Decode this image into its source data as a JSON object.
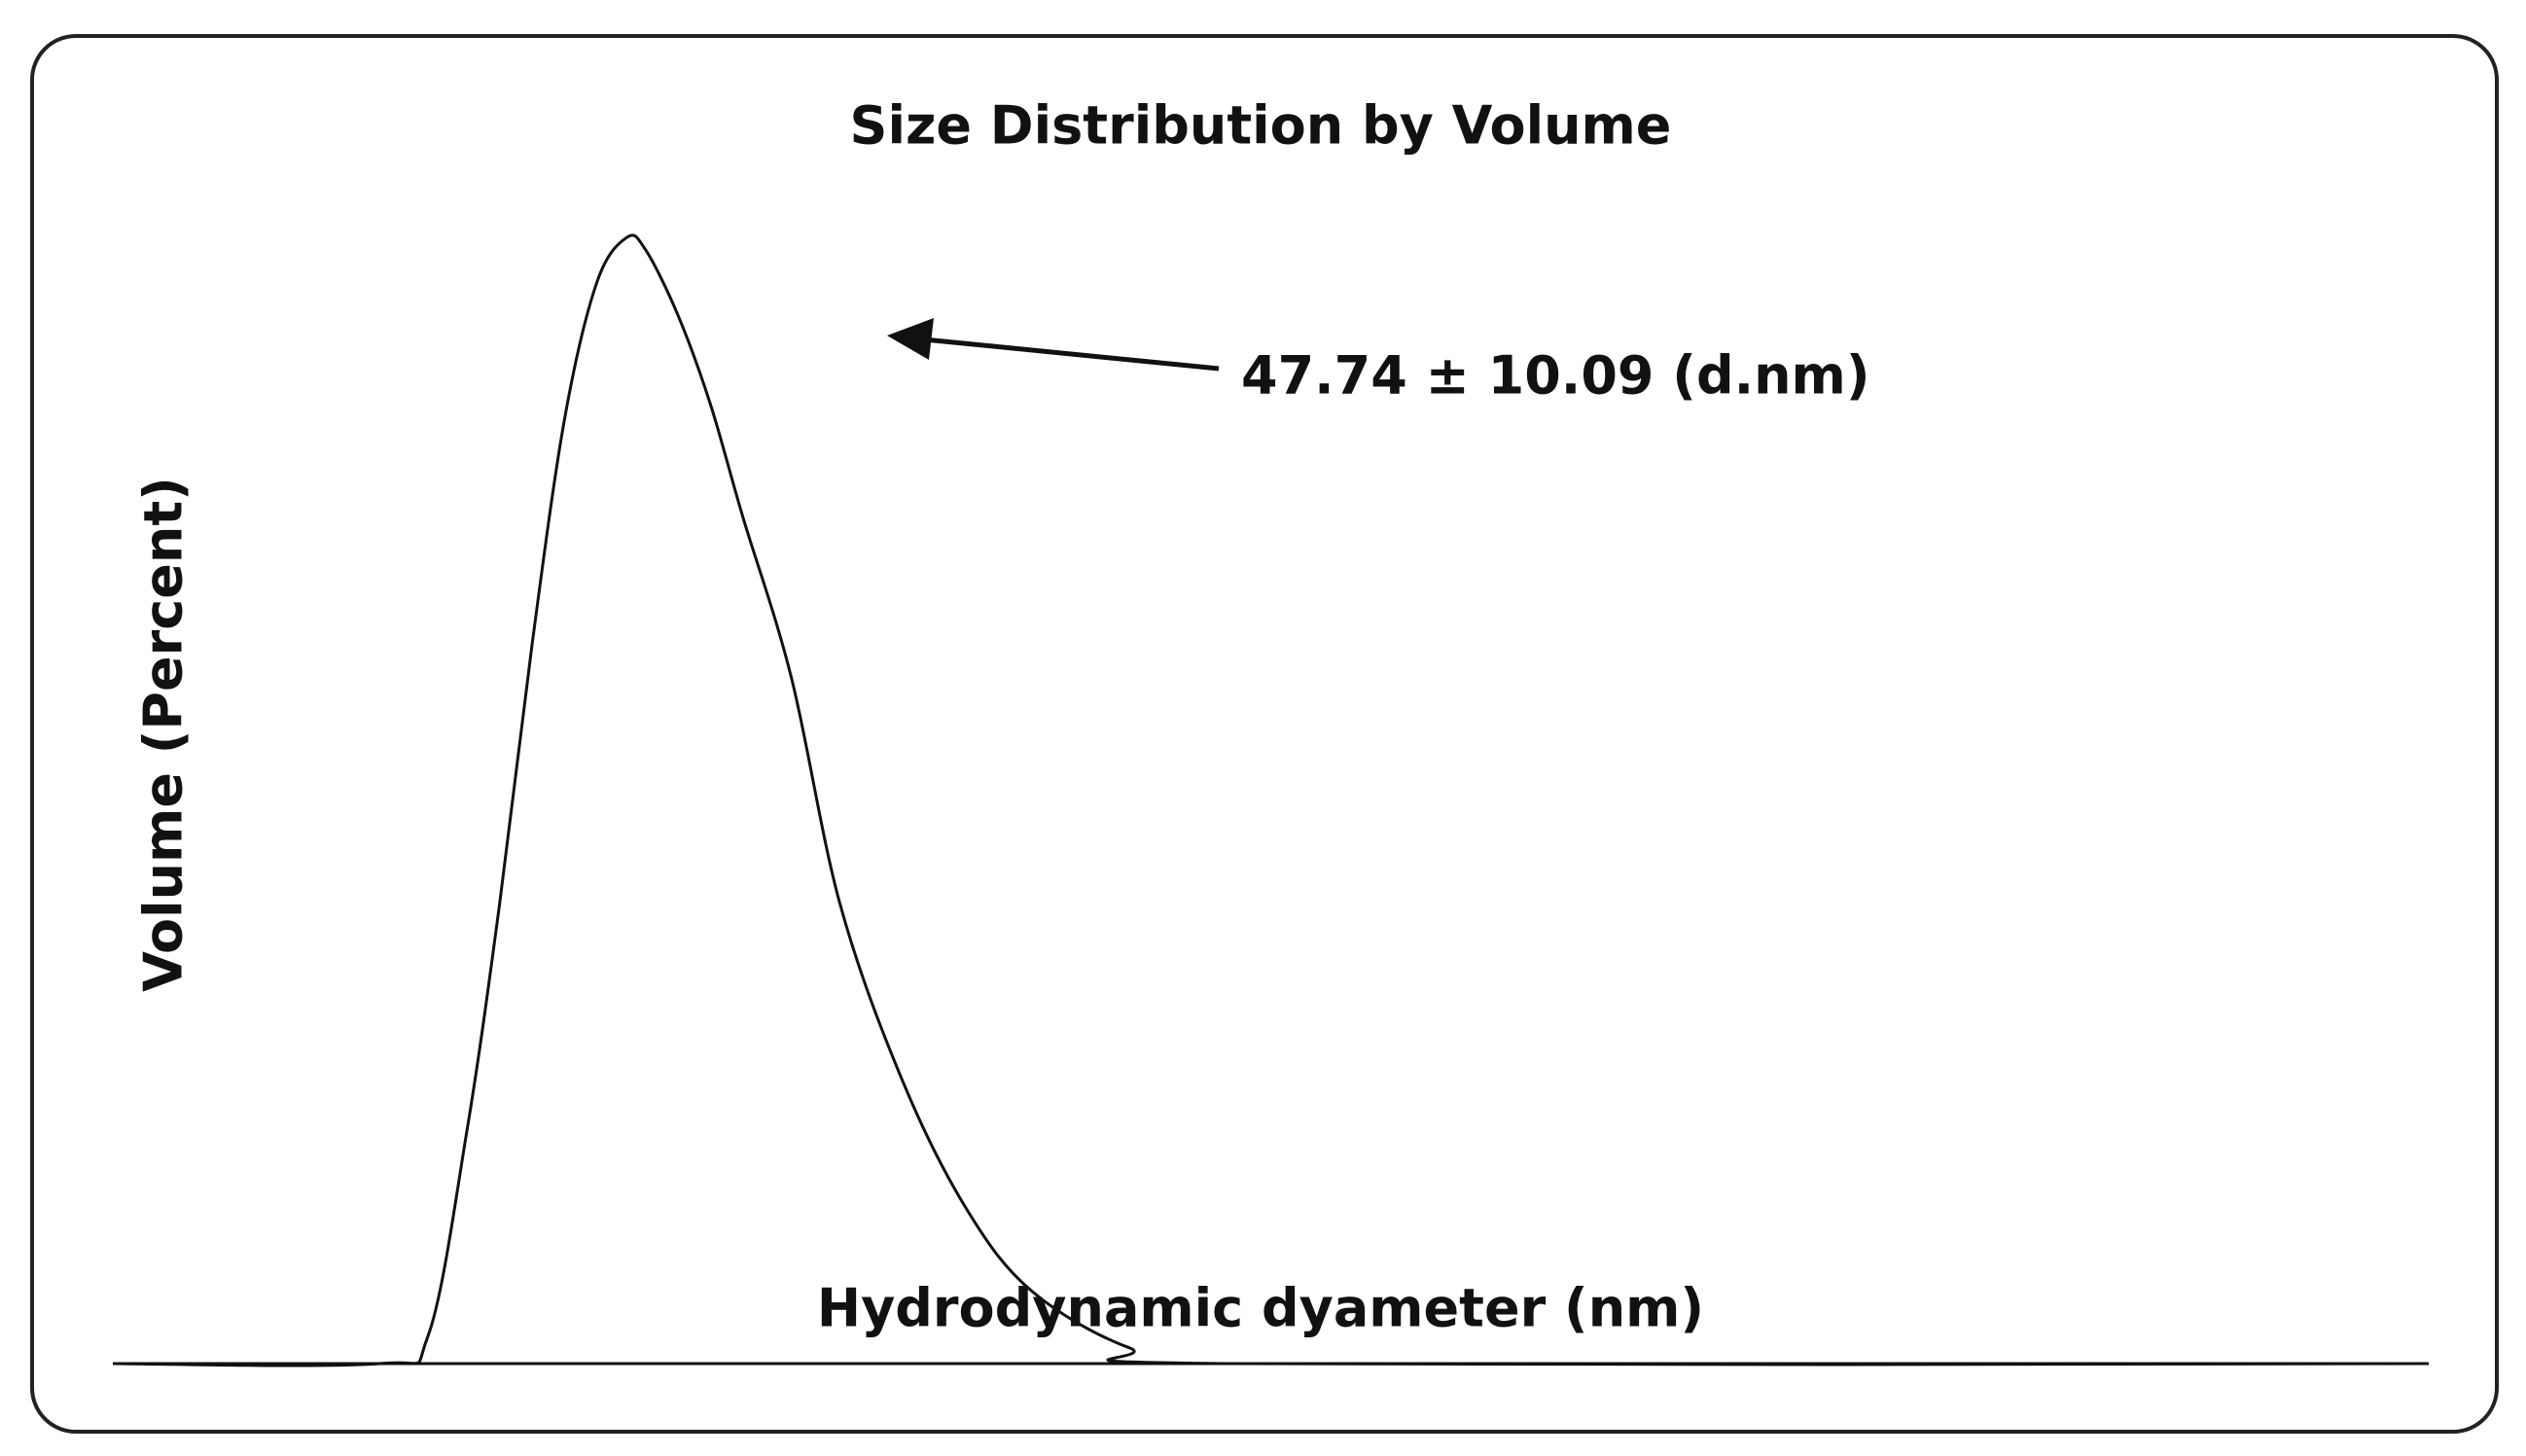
{
  "chart_data": {
    "type": "line",
    "title": "Size Distribution  by Volume",
    "x_label": "Hydrodynamic dyameter (nm)",
    "y_label": "Volume (Percent)",
    "annotation": "47.74 ± 10.09 (d.nm)",
    "x": [
      0,
      11.5,
      13.6,
      15.3,
      16.7,
      18.1,
      19.5,
      20.9,
      22.2,
      23.0,
      24.4,
      25.8,
      27.2,
      29.3,
      31.4,
      34.1,
      36.9,
      39.7,
      43.9,
      48.1,
      100
    ],
    "series": [
      {
        "color": "#111111",
        "values": [
          0,
          0,
          2.4,
          20.8,
          40.8,
          63.8,
          83.8,
          96.0,
          100,
          98.9,
          93.1,
          85.2,
          75.2,
          60.9,
          40.8,
          25.1,
          13.6,
          6.4,
          1.4,
          0,
          0
        ]
      }
    ],
    "xlim": [
      0,
      100
    ],
    "ylim": [
      0,
      100
    ]
  }
}
